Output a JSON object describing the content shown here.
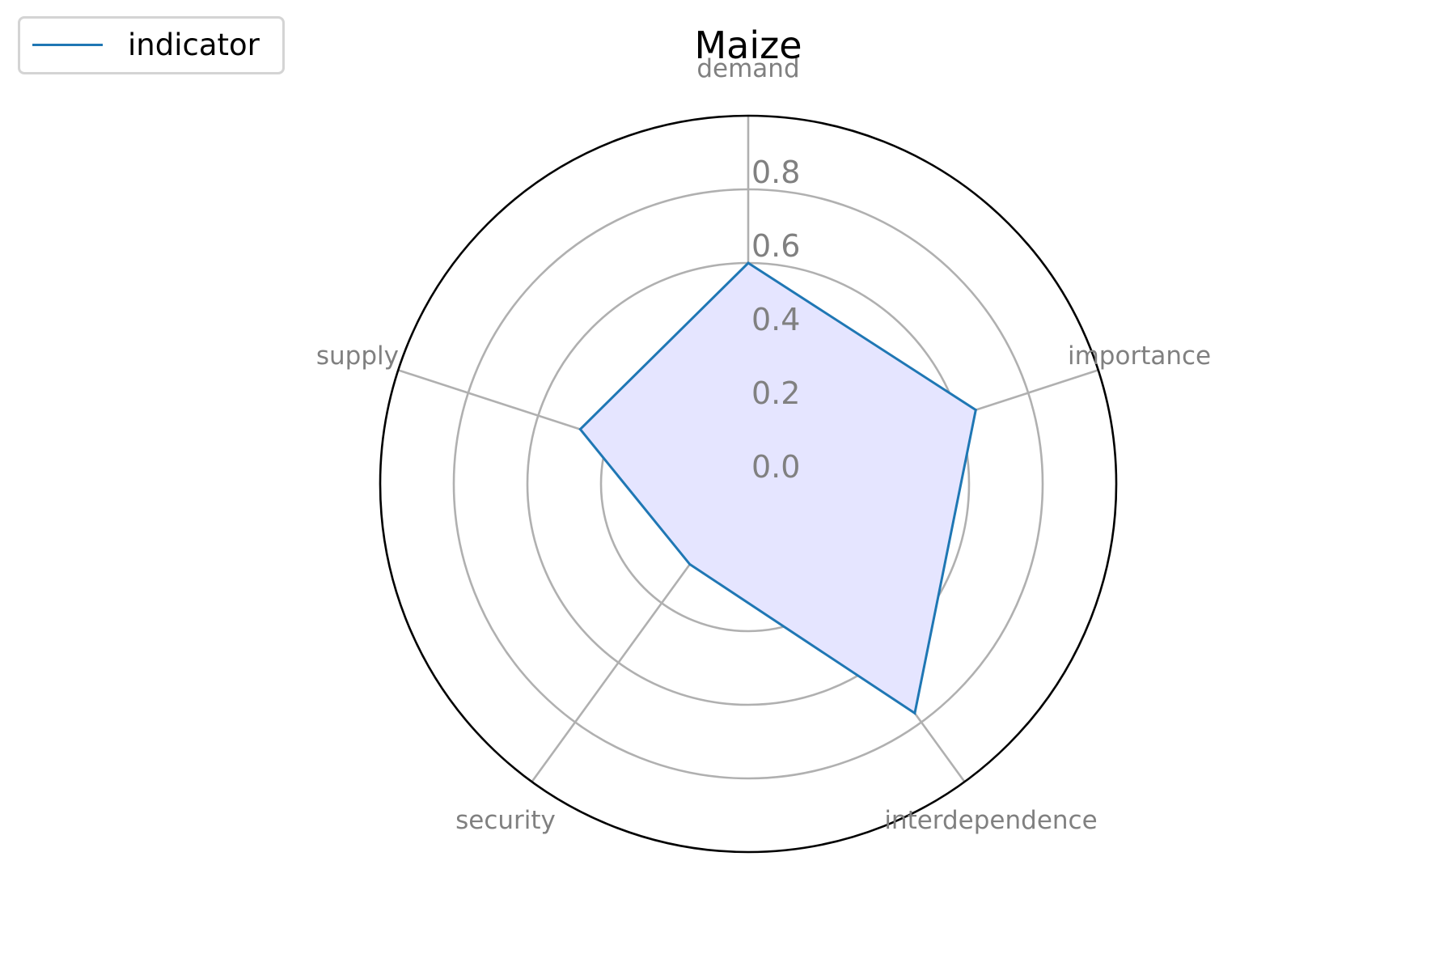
{
  "chart_data": {
    "type": "radar",
    "title": "Maize",
    "categories": [
      "demand",
      "importance",
      "interdependence",
      "security",
      "supply"
    ],
    "series": [
      {
        "name": "indicator",
        "values": [
          0.6,
          0.65,
          0.77,
          0.27,
          0.48
        ]
      }
    ],
    "r_ticks": [
      "0.0",
      "0.2",
      "0.4",
      "0.6",
      "0.8"
    ],
    "rlim": [
      0,
      1.0
    ],
    "grid": true,
    "legend_position": "top-left",
    "colors": {
      "line": "#1f77b4",
      "fill": "#e5e5ff",
      "grid": "#b0b0b0",
      "label": "#808080",
      "spine": "#000000"
    }
  }
}
